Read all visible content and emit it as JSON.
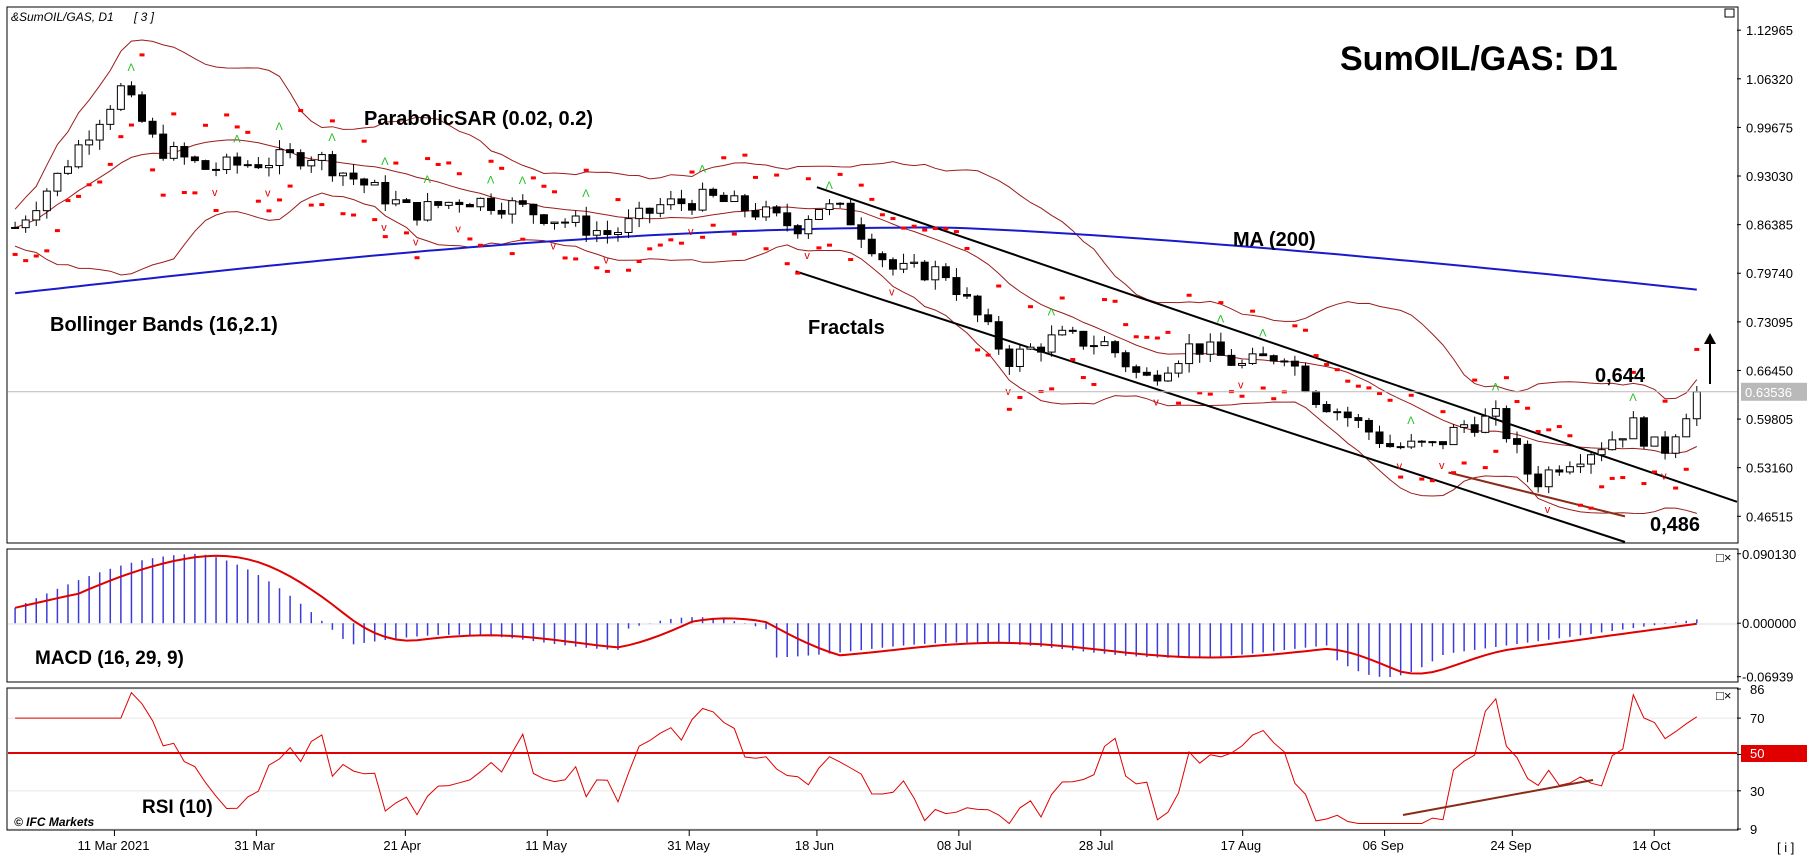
{
  "header": {
    "symbol": "&SumOIL/GAS, D1",
    "bracket": "[ 3 ]"
  },
  "title": "SumOIL/GAS: D1",
  "watermark": "© IFC Markets",
  "footer_icon": "[ i ]",
  "colors": {
    "bull": "#ffffff",
    "bear": "#000000",
    "sar": "#ff0000",
    "bollinger": "#9b1c1c",
    "ma": "#1a1acd",
    "macd_hist": "#3b3bdc",
    "macd_signal": "#e00000",
    "rsi": "#e00000",
    "rsi_mid": "#e00000",
    "fractal_up": "#22c122",
    "fractal_down": "#e00000",
    "channel": "#000000",
    "price_tag": "#b9b9b9",
    "rsi_tag": "#e00000"
  },
  "labels": {
    "psar": "ParabolicSAR (0.02, 0.2)",
    "bb": "Bollinger Bands (16,2.1)",
    "ma": "MA (200)",
    "fractals": "Fractals",
    "level_high": "0,644",
    "level_low": "0,486",
    "macd": "MACD (16, 29, 9)",
    "rsi": "RSI (10)"
  },
  "chart_data": [
    {
      "type": "candlestick",
      "title": "SumOIL/GAS: D1",
      "symbol": "SumOIL/GAS",
      "timeframe": "D1",
      "y_ticks": [
        "1.12965",
        "1.06320",
        "0.99675",
        "0.93030",
        "0.86385",
        "0.79740",
        "0.73095",
        "0.66450",
        "0.59805",
        "0.53160",
        "0.46515"
      ],
      "ylim": [
        0.43,
        1.16
      ],
      "current_price": "0.63536",
      "x_ticks": [
        "11 Mar 2021",
        "31 Mar",
        "21 Apr",
        "11 May",
        "31 May",
        "18 Jun",
        "08 Jul",
        "28 Jul",
        "17 Aug",
        "06 Sep",
        "24 Sep",
        "14 Oct"
      ],
      "close_path": [
        {
          "x": "2021-02-25",
          "y": 0.86
        },
        {
          "x": "2021-03-03",
          "y": 0.93
        },
        {
          "x": "2021-03-08",
          "y": 1.0
        },
        {
          "x": "2021-03-12",
          "y": 1.05
        },
        {
          "x": "2021-03-17",
          "y": 0.97
        },
        {
          "x": "2021-03-24",
          "y": 0.94
        },
        {
          "x": "2021-04-01",
          "y": 0.95
        },
        {
          "x": "2021-04-08",
          "y": 0.96
        },
        {
          "x": "2021-04-15",
          "y": 0.92
        },
        {
          "x": "2021-04-22",
          "y": 0.88
        },
        {
          "x": "2021-04-29",
          "y": 0.9
        },
        {
          "x": "2021-05-06",
          "y": 0.89
        },
        {
          "x": "2021-05-13",
          "y": 0.87
        },
        {
          "x": "2021-05-20",
          "y": 0.85
        },
        {
          "x": "2021-05-27",
          "y": 0.89
        },
        {
          "x": "2021-06-03",
          "y": 0.9
        },
        {
          "x": "2021-06-10",
          "y": 0.88
        },
        {
          "x": "2021-06-15",
          "y": 0.86
        },
        {
          "x": "2021-06-18",
          "y": 0.89
        },
        {
          "x": "2021-06-22",
          "y": 0.88
        },
        {
          "x": "2021-06-29",
          "y": 0.8
        },
        {
          "x": "2021-07-06",
          "y": 0.8
        },
        {
          "x": "2021-07-12",
          "y": 0.72
        },
        {
          "x": "2021-07-15",
          "y": 0.68
        },
        {
          "x": "2021-07-22",
          "y": 0.71
        },
        {
          "x": "2021-07-29",
          "y": 0.7
        },
        {
          "x": "2021-08-03",
          "y": 0.65
        },
        {
          "x": "2021-08-10",
          "y": 0.7
        },
        {
          "x": "2021-08-17",
          "y": 0.67
        },
        {
          "x": "2021-08-23",
          "y": 0.69
        },
        {
          "x": "2021-08-27",
          "y": 0.63
        },
        {
          "x": "2021-09-01",
          "y": 0.6
        },
        {
          "x": "2021-09-07",
          "y": 0.56
        },
        {
          "x": "2021-09-13",
          "y": 0.56
        },
        {
          "x": "2021-09-17",
          "y": 0.59
        },
        {
          "x": "2021-09-22",
          "y": 0.6
        },
        {
          "x": "2021-09-27",
          "y": 0.51
        },
        {
          "x": "2021-10-01",
          "y": 0.54
        },
        {
          "x": "2021-10-06",
          "y": 0.56
        },
        {
          "x": "2021-10-11",
          "y": 0.59
        },
        {
          "x": "2021-10-15",
          "y": 0.55
        },
        {
          "x": "2021-10-20",
          "y": 0.63536
        }
      ],
      "overlays": [
        "ParabolicSAR (0.02, 0.2)",
        "Bollinger Bands (16,2.1)",
        "MA (200)",
        "Fractals"
      ],
      "annotations": [
        {
          "text": "0,644",
          "y": 0.644
        },
        {
          "text": "0,486",
          "y": 0.486
        },
        {
          "text": "up arrow",
          "y": 0.7
        }
      ]
    },
    {
      "type": "macd",
      "label": "MACD (16, 29, 9)",
      "y_ticks": [
        "0.090130",
        "0.000000",
        "-0.06939"
      ],
      "ylim": [
        -0.075,
        0.095
      ]
    },
    {
      "type": "rsi",
      "label": "RSI (10)",
      "y_ticks": [
        "86",
        "70",
        "50",
        "30",
        "9"
      ],
      "ylim": [
        9,
        86
      ],
      "level": 50
    }
  ]
}
